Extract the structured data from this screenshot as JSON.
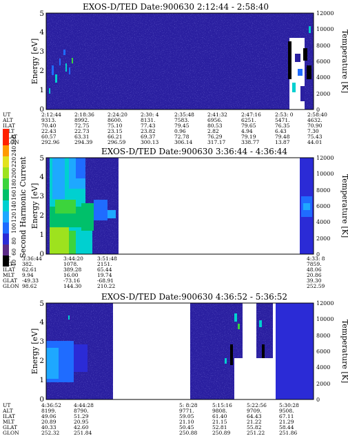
{
  "colors": {
    "background": "#3d3da8",
    "plot_fill": "#2a1fa0",
    "white_gap": "#ffffff"
  },
  "colorbar": {
    "label": "Second Harmonic Current",
    "ticks": [
      "40",
      "60",
      "80",
      "100",
      "120",
      "140",
      "160",
      "180",
      "200",
      "220",
      "240",
      "260"
    ],
    "colors": [
      "#000000",
      "#5b2a86",
      "#2b2bd6",
      "#1f6cff",
      "#1ea8ff",
      "#00d0d0",
      "#00c06a",
      "#3cd43c",
      "#9ee21e",
      "#e2e21e",
      "#ff9a00",
      "#ff2200"
    ]
  },
  "chart_data": [
    {
      "type": "heatmap",
      "title": "EXOS-D/TED   Date:900630  2:12:44 - 2:58:40",
      "ylabel": "Energy [eV]",
      "y2label": "Temperature [K]",
      "ylim": [
        0,
        5
      ],
      "y2lim": [
        0,
        12000
      ],
      "yticks": [
        "0",
        "1",
        "2",
        "3",
        "4",
        "5"
      ],
      "y2ticks": [
        "0",
        "2000",
        "4000",
        "6000",
        "8000",
        "10000",
        "12000"
      ],
      "orbit_labels": [
        "UT",
        "ALT",
        "ILAT",
        "MLT",
        "GLAT",
        "GLON"
      ],
      "orbit": [
        [
          "2:12:44",
          "9313.",
          "70.40",
          "22.43",
          "60.57",
          "292.96"
        ],
        [
          "2:18:36",
          "8992.",
          "72.75",
          "22.73",
          "63.31",
          "294.39"
        ],
        [
          "2:24:20",
          "8600.",
          "75.10",
          "23.15",
          "66.21",
          "296.59"
        ],
        [
          "2:30: 4",
          "8131.",
          "77.43",
          "23.82",
          "69.37",
          "300.13"
        ],
        [
          "2:35:48",
          "7583.",
          "79.45",
          "0.96",
          "72.78",
          "306.14"
        ],
        [
          "2:41:32",
          "6956.",
          "80.53",
          "2.82",
          "76.29",
          "317.17"
        ],
        [
          "2:47:16",
          "6251.",
          "79.65",
          "4.94",
          "79.19",
          "338.77"
        ],
        [
          "2:53: 0",
          "5471.",
          "76.35",
          "6.43",
          "79.48",
          "13.87"
        ],
        [
          "2:58:40",
          "4632.",
          "70.90",
          "7.30",
          "75.43",
          "44.01"
        ]
      ]
    },
    {
      "type": "heatmap",
      "title": "EXOS-D/TED   Date:900630  3:36:44 - 4:36:44",
      "ylabel": "Energy [eV]",
      "y2label": "Temperature [K]",
      "ylim": [
        0,
        5
      ],
      "y2lim": [
        0,
        12000
      ],
      "yticks": [
        "0",
        "1",
        "2",
        "3",
        "4",
        "5"
      ],
      "y2ticks": [
        "0",
        "2000",
        "4000",
        "6000",
        "8000",
        "10000",
        "12000"
      ],
      "orbit_labels": [
        "UT",
        "ALT",
        "ILAT",
        "MLT",
        "GLAT",
        "GLON"
      ],
      "orbit": [
        [
          "3:36:44",
          "382.",
          "62.61",
          "9.94",
          "-49.33",
          "98.62"
        ],
        [
          "3:44:20",
          "1078.",
          "389.28",
          "16.00",
          "-73.16",
          "144.30"
        ],
        [
          "3:51:48",
          "2151.",
          "65.44",
          "19.74",
          "-68.91",
          "210.22"
        ],
        [
          "4:33: 8",
          "7859.",
          "48.06",
          "20.86",
          "39.30",
          "252.59"
        ]
      ]
    },
    {
      "type": "heatmap",
      "title": "EXOS-D/TED   Date:900630  4:36:52 - 5:36:52",
      "ylabel": "Energy [eV]",
      "y2label": "Temperature [K]",
      "ylim": [
        0,
        5
      ],
      "y2lim": [
        0,
        12000
      ],
      "yticks": [
        "0",
        "1",
        "2",
        "3",
        "4",
        "5"
      ],
      "y2ticks": [
        "0",
        "2000",
        "4000",
        "6000",
        "8000",
        "10000",
        "12000"
      ],
      "orbit_labels": [
        "UT",
        "ALT",
        "ILAT",
        "MLT",
        "GLAT",
        "GLON"
      ],
      "orbit": [
        [
          "4:36:52",
          "8199.",
          "49.06",
          "20.89",
          "40.33",
          "252.32"
        ],
        [
          "4:44:28",
          "8790.",
          "51.29",
          "20.95",
          "42.60",
          "251.84"
        ],
        [
          "5: 8:28",
          "9771.",
          "59.05",
          "21.10",
          "50.45",
          "250.88"
        ],
        [
          "5:15:16",
          "9808.",
          "61.40",
          "21.15",
          "52.81",
          "250.89"
        ],
        [
          "5:22:56",
          "9709.",
          "64.43",
          "21.22",
          "55.82",
          "251.22"
        ],
        [
          "5:30:28",
          "9508.",
          "67.11",
          "21.29",
          "58.44",
          "251.86"
        ]
      ]
    }
  ]
}
